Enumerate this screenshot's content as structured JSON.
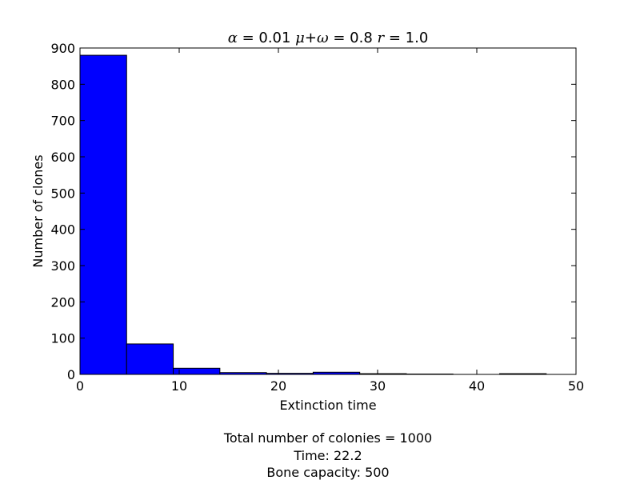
{
  "chart_data": {
    "type": "bar",
    "title_parts": {
      "alpha_sym": "α",
      "alpha_val": " = 0.01 ",
      "mu_sym": "μ",
      "plus": "+",
      "omega_sym": "ω",
      "mw_val": " = 0.8 ",
      "r_sym": "r",
      "r_val": " = 1.0"
    },
    "xlabel": "Extinction time",
    "ylabel": "Number of clones",
    "xlim": [
      0,
      50
    ],
    "ylim": [
      0,
      900
    ],
    "xticks": [
      0,
      10,
      20,
      30,
      40,
      50
    ],
    "yticks": [
      0,
      100,
      200,
      300,
      400,
      500,
      600,
      700,
      800,
      900
    ],
    "bin_edges": [
      0,
      4.7,
      9.4,
      14.1,
      18.8,
      23.5,
      28.2,
      32.9,
      37.6,
      42.3,
      47.0
    ],
    "values": [
      880,
      84,
      17,
      5,
      3,
      6,
      2,
      1,
      0,
      2
    ],
    "bar_color": "#0000ff",
    "grid": false
  },
  "captions": {
    "line1": "Total number of colonies = 1000",
    "line2": "Time: 22.2",
    "line3": "Bone capacity: 500"
  }
}
